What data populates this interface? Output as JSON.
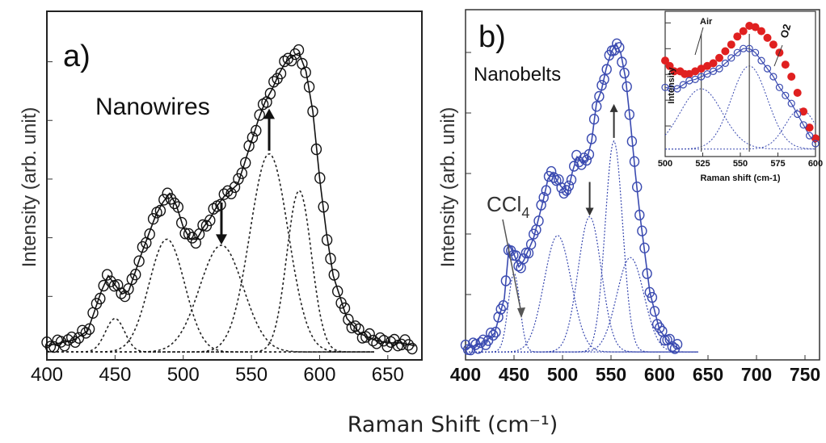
{
  "xlabel": "Raman Shift (cm⁻¹)",
  "chart_data": [
    {
      "panel": "a)",
      "type": "line",
      "label": "Nanowires",
      "ylabel": "Intensity (arb. unit)",
      "xlim": [
        400,
        675
      ],
      "xticks": [
        "400",
        "450",
        "500",
        "550",
        "600",
        "650"
      ],
      "ylim": [
        0,
        1
      ],
      "grid": false,
      "series": [
        {
          "role": "measured",
          "x": [
            400,
            410,
            420,
            430,
            440,
            445,
            450,
            455,
            460,
            470,
            480,
            485,
            490,
            495,
            500,
            505,
            510,
            515,
            520,
            525,
            530,
            535,
            540,
            545,
            550,
            555,
            560,
            565,
            570,
            575,
            580,
            585,
            590,
            595,
            600,
            605,
            610,
            620,
            630,
            640,
            650,
            660,
            670
          ],
          "y": [
            0.03,
            0.04,
            0.05,
            0.08,
            0.21,
            0.26,
            0.23,
            0.2,
            0.21,
            0.34,
            0.46,
            0.5,
            0.53,
            0.49,
            0.42,
            0.38,
            0.38,
            0.42,
            0.45,
            0.49,
            0.52,
            0.54,
            0.56,
            0.63,
            0.7,
            0.77,
            0.83,
            0.87,
            0.92,
            0.96,
            0.98,
            0.99,
            0.93,
            0.8,
            0.58,
            0.4,
            0.26,
            0.12,
            0.07,
            0.05,
            0.04,
            0.04,
            0.03
          ]
        }
      ],
      "peaks": [
        {
          "center": 450,
          "height": 0.11,
          "width": 7
        },
        {
          "center": 488,
          "height": 0.37,
          "width": 13
        },
        {
          "center": 528,
          "height": 0.35,
          "width": 16
        },
        {
          "center": 563,
          "height": 0.65,
          "width": 14
        },
        {
          "center": 585,
          "height": 0.53,
          "width": 9
        }
      ],
      "arrows": [
        {
          "x": 528,
          "direction": "down"
        },
        {
          "x": 563,
          "direction": "up"
        }
      ]
    },
    {
      "panel": "b)",
      "type": "line",
      "label": "Nanobelts",
      "ylabel": "Intensity (arb. unit)",
      "xlim": [
        400,
        765
      ],
      "xticks": [
        "400",
        "450",
        "500",
        "550",
        "600",
        "650",
        "700",
        "750"
      ],
      "ylim": [
        0,
        1
      ],
      "grid": false,
      "annotation": "CCl4",
      "annotation_main": "CCl",
      "annotation_sub": "4",
      "color": "#3a4ab0",
      "series": [
        {
          "role": "measured",
          "x": [
            400,
            410,
            420,
            430,
            440,
            445,
            450,
            455,
            460,
            470,
            480,
            485,
            490,
            495,
            500,
            505,
            510,
            515,
            520,
            525,
            530,
            535,
            540,
            545,
            550,
            555,
            560,
            565,
            570,
            575,
            580,
            590,
            600,
            610,
            620
          ],
          "y": [
            0.02,
            0.03,
            0.04,
            0.07,
            0.18,
            0.35,
            0.32,
            0.28,
            0.3,
            0.37,
            0.49,
            0.56,
            0.58,
            0.55,
            0.53,
            0.51,
            0.58,
            0.63,
            0.61,
            0.62,
            0.68,
            0.8,
            0.84,
            0.91,
            0.96,
            0.99,
            0.96,
            0.88,
            0.74,
            0.58,
            0.44,
            0.2,
            0.08,
            0.04,
            0.02
          ]
        }
      ],
      "peaks": [
        {
          "center": 450,
          "height": 0.25,
          "width": 6
        },
        {
          "center": 495,
          "height": 0.37,
          "width": 14
        },
        {
          "center": 528,
          "height": 0.43,
          "width": 12
        },
        {
          "center": 553,
          "height": 0.67,
          "width": 9
        },
        {
          "center": 570,
          "height": 0.3,
          "width": 14
        }
      ],
      "arrows": [
        {
          "x": 528,
          "direction": "down"
        },
        {
          "x": 553,
          "direction": "up"
        }
      ]
    },
    {
      "panel": "inset",
      "type": "scatter",
      "xlabel": "Raman shift (cm-1)",
      "ylabel": "Intensity",
      "xlim": [
        500,
        600
      ],
      "xticks": [
        "500",
        "525",
        "550",
        "575",
        "600"
      ],
      "ylim": [
        0,
        1
      ],
      "annotations": [
        "Air",
        "O2"
      ],
      "series": [
        {
          "name": "Air",
          "color": "#e02020",
          "x": [
            500,
            503,
            506,
            510,
            513,
            516,
            520,
            524,
            528,
            532,
            536,
            540,
            544,
            548,
            552,
            556,
            560,
            564,
            568,
            572,
            576,
            580,
            584,
            588,
            592,
            596,
            600
          ],
          "y": [
            0.68,
            0.64,
            0.6,
            0.6,
            0.58,
            0.58,
            0.6,
            0.62,
            0.64,
            0.66,
            0.7,
            0.75,
            0.8,
            0.86,
            0.9,
            0.94,
            0.93,
            0.9,
            0.85,
            0.8,
            0.74,
            0.65,
            0.56,
            0.44,
            0.3,
            0.18,
            0.1
          ]
        },
        {
          "name": "O2",
          "color": "#3a4ab0",
          "x": [
            500,
            504,
            508,
            512,
            516,
            520,
            524,
            528,
            532,
            536,
            540,
            544,
            548,
            552,
            556,
            560,
            564,
            568,
            572,
            576,
            580,
            584,
            588,
            592,
            596,
            600
          ],
          "y": [
            0.48,
            0.47,
            0.47,
            0.5,
            0.53,
            0.54,
            0.56,
            0.58,
            0.6,
            0.62,
            0.66,
            0.7,
            0.74,
            0.77,
            0.77,
            0.74,
            0.68,
            0.62,
            0.56,
            0.48,
            0.42,
            0.36,
            0.28,
            0.2,
            0.12,
            0.06
          ]
        }
      ],
      "reference_lines": [
        524,
        556
      ]
    }
  ]
}
